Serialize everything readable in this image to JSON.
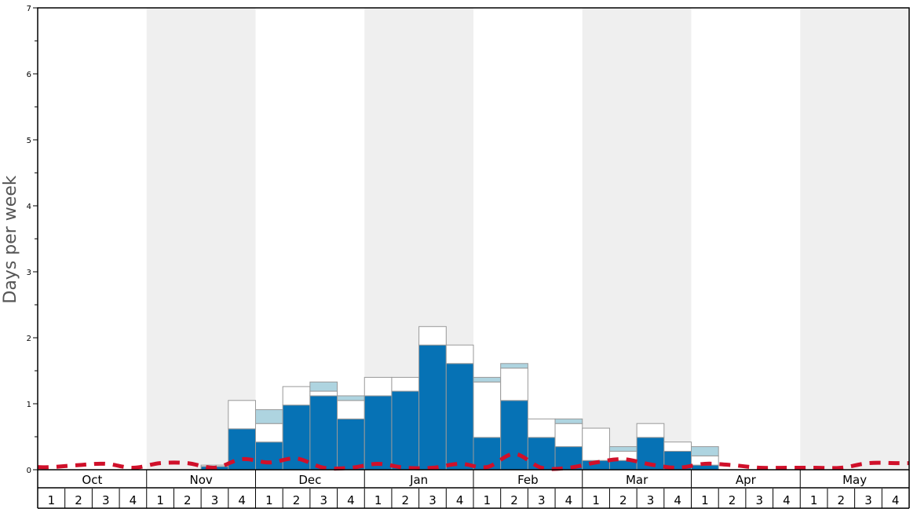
{
  "chart_data": {
    "type": "bar",
    "ylabel": "Days per week",
    "ylim": [
      0,
      7
    ],
    "yticks": [
      "0",
      "1",
      "2",
      "3",
      "4",
      "5",
      "6",
      "7"
    ],
    "months": [
      "Oct",
      "Nov",
      "Dec",
      "Jan",
      "Feb",
      "Mar",
      "Apr",
      "May"
    ],
    "week_labels": [
      "1",
      "2",
      "3",
      "4"
    ],
    "shaded_months": [
      "Nov",
      "Jan",
      "Mar",
      "May"
    ],
    "colors": {
      "primary": "#0672b5",
      "secondary": "#ffffff",
      "tertiary": "#aed4e0",
      "line": "#d0102a",
      "band": "#efefef"
    },
    "series": [
      {
        "values": [
          0,
          0,
          0,
          0,
          0,
          0,
          0.05,
          0.62,
          0.42,
          0.98,
          1.12,
          0.77,
          1.12,
          1.19,
          1.89,
          1.61,
          0.49,
          1.05,
          0.49,
          0.35,
          0.14,
          0.14,
          0.49,
          0.28,
          0.07,
          0,
          0,
          0,
          0,
          0,
          0,
          0
        ]
      },
      {
        "values": [
          0,
          0,
          0,
          0,
          0,
          0,
          0.02,
          0.43,
          0.28,
          0.28,
          0.07,
          0.28,
          0.28,
          0.21,
          0.28,
          0.28,
          0.84,
          0.49,
          0.28,
          0.35,
          0.49,
          0.14,
          0.21,
          0.14,
          0.14,
          0,
          0,
          0,
          0,
          0,
          0,
          0
        ]
      },
      {
        "values": [
          0,
          0,
          0,
          0,
          0,
          0,
          0,
          0,
          0.21,
          0,
          0.14,
          0.07,
          0,
          0,
          0,
          0,
          0.07,
          0.07,
          0,
          0.07,
          0,
          0.07,
          0,
          0,
          0.14,
          0,
          0,
          0,
          0,
          0,
          0,
          0
        ]
      },
      {
        "type": "line",
        "style": "dashed",
        "values": [
          0.04,
          0.07,
          0.09,
          0.03,
          0.1,
          0.1,
          0.03,
          0.16,
          0.11,
          0.17,
          0.03,
          0.03,
          0.09,
          0.03,
          0.03,
          0.09,
          0.04,
          0.24,
          0.03,
          0.03,
          0.11,
          0.16,
          0.08,
          0.03,
          0.09,
          0.07,
          0.03,
          0.03,
          0.03,
          0.03,
          0.1,
          0.1
        ]
      }
    ]
  }
}
